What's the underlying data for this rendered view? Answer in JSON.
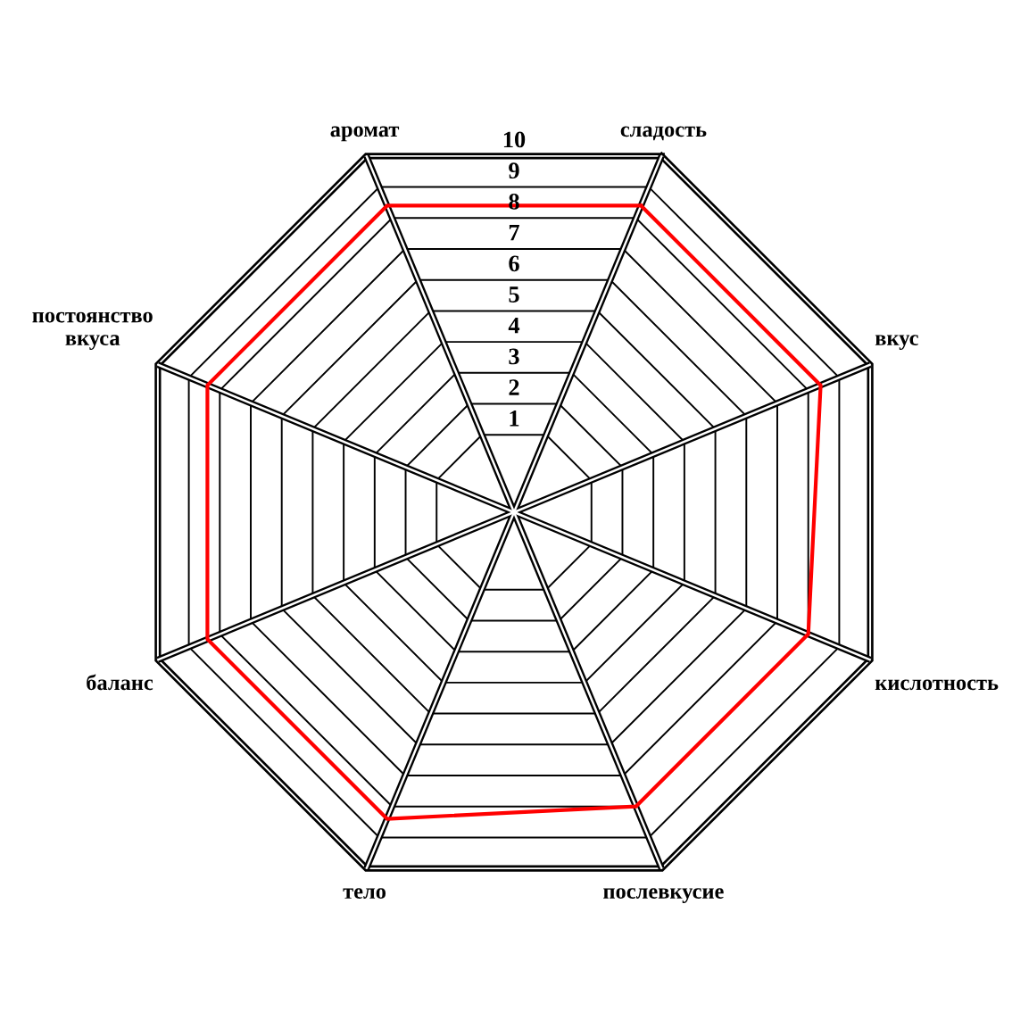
{
  "chart_data": {
    "type": "radar",
    "categories": [
      "сладость",
      "вкус",
      "кислотность",
      "послевкусие",
      "тело",
      "баланс",
      "постоянство вкуса",
      "аромат"
    ],
    "series": [
      {
        "color": "#ff0000",
        "values": [
          8.4,
          8.4,
          8,
          8,
          8.4,
          8.4,
          8.4,
          8.4
        ]
      }
    ],
    "ylim": [
      -1.5,
      10
    ],
    "yticks": [
      1,
      2,
      3,
      4,
      5,
      6,
      7,
      8,
      9,
      10
    ],
    "grid": true
  }
}
